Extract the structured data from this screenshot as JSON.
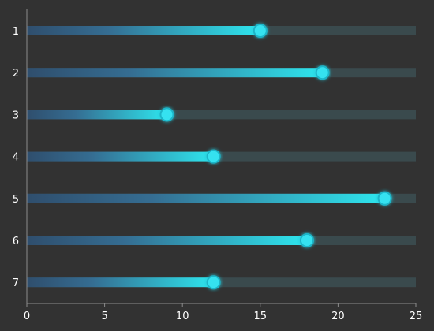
{
  "colors": {
    "background": "#323232",
    "track": "#3a4a4d",
    "bar_start": "#2f4e6d",
    "bar_end": "#2ee6ee",
    "dot_fill": "#36e2f0",
    "dot_ring": "#1fb5c8",
    "axis": "#8c8c8c",
    "text": "#ffffff"
  },
  "chart_data": {
    "type": "bar",
    "orientation": "horizontal",
    "categories": [
      "1",
      "2",
      "3",
      "4",
      "5",
      "6",
      "7"
    ],
    "values": [
      15,
      19,
      9,
      12,
      23,
      18,
      12
    ],
    "xlim": [
      0,
      25
    ],
    "xticks": [
      0,
      5,
      10,
      15,
      20,
      25
    ],
    "grid": false,
    "legend": "none"
  }
}
